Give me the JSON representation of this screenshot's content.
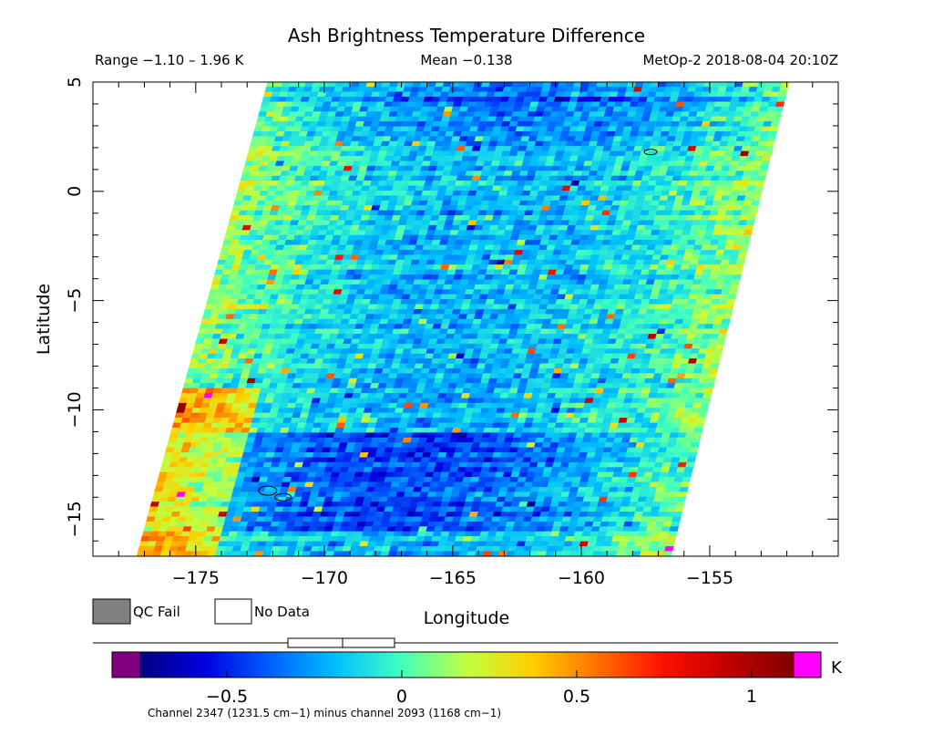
{
  "chart_data": {
    "type": "heatmap",
    "title": "Ash Brightness Temperature Difference",
    "subtitle_left": "Range −1.10 – 1.96 K",
    "subtitle_mid": "Mean −0.138",
    "subtitle_right": "MetOp-2 2018-08-04 20:10Z",
    "xlabel": "Longitude",
    "ylabel": "Latitude",
    "xlim": [
      -179,
      -150
    ],
    "ylim": [
      -16.7,
      5
    ],
    "xticks": [
      -175,
      -170,
      -165,
      -160,
      -155
    ],
    "xtick_labels": [
      "−175",
      "−170",
      "−165",
      "−160",
      "−155"
    ],
    "yticks": [
      5,
      0,
      -5,
      -10,
      -15
    ],
    "ytick_labels": [
      "5",
      "0",
      "−5",
      "−10",
      "−15"
    ],
    "swath": {
      "top_lat": 5,
      "top_lon_west": -172.2,
      "top_lon_east": -151.9,
      "bottom_lat": -16.7,
      "bottom_lon_west": -177.3,
      "bottom_lon_east": -156.5
    },
    "value_range": [
      -1.1,
      1.96
    ],
    "mean": -0.138,
    "legend": {
      "qc_fail": "QC Fail",
      "no_data": "No Data"
    },
    "colorbar": {
      "min": -0.75,
      "max": 1.12,
      "ticks": [
        -0.5,
        0,
        0.5,
        1
      ],
      "tick_labels": [
        "−0.5",
        "0",
        "0.5",
        "1"
      ],
      "unit": "K",
      "caption": "Channel 2347 (1231.5 cm−1) minus channel 2093 (1168 cm−1)",
      "under_color": "#800080",
      "over_color": "#ff00ff",
      "colors": [
        "#000080",
        "#0000e0",
        "#0060ff",
        "#00c0ff",
        "#40ffc0",
        "#c0ff40",
        "#ffd000",
        "#ff7000",
        "#ff1000",
        "#c00000",
        "#800000"
      ]
    },
    "colors": {
      "qc_fail": "#808080",
      "no_data": "#ffffff"
    }
  }
}
